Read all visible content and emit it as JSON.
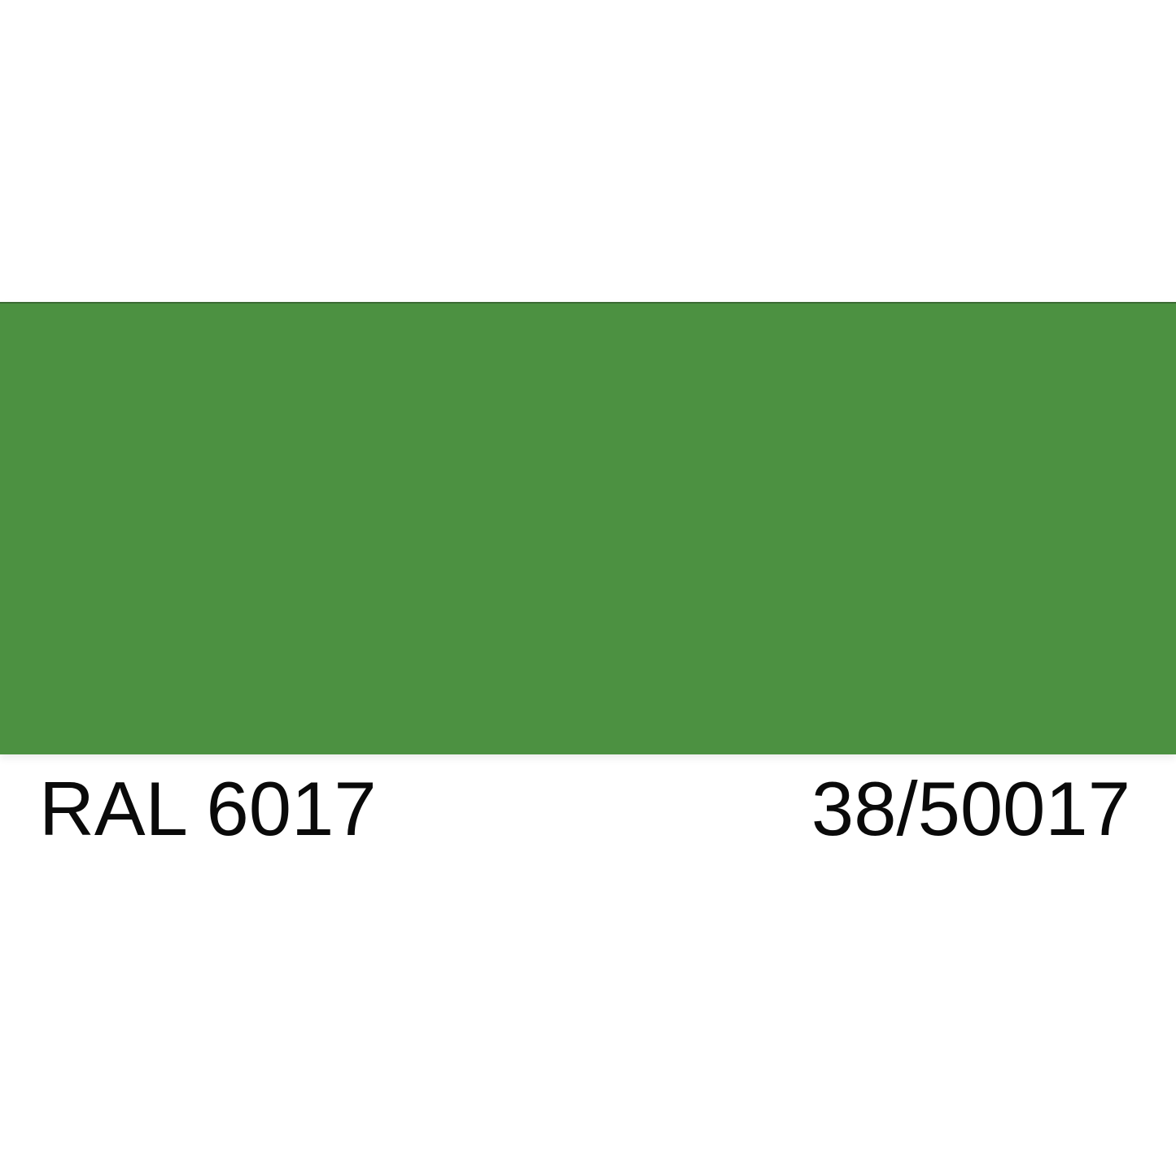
{
  "swatch": {
    "fill_hex": "#4C9141",
    "top_edge_hex": "#3C5F33",
    "ral_code": "RAL 6017",
    "secondary_code": "38/50017"
  },
  "page": {
    "background_hex": "#FFFFFF",
    "text_hex": "#0A0A0A"
  }
}
